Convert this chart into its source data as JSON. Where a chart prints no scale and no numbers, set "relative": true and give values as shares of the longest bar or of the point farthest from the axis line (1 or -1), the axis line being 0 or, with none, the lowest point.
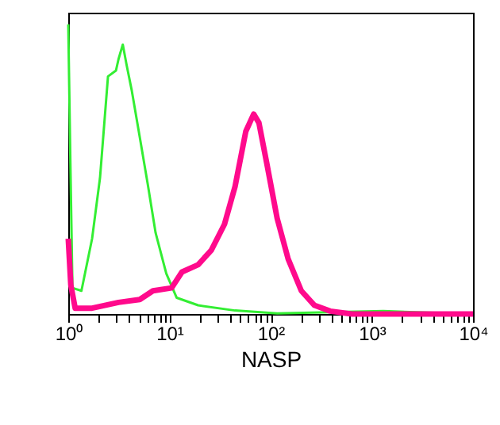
{
  "chart_data": {
    "type": "line",
    "xlabel": "NASP",
    "log": "x",
    "relative": true,
    "marker": "none",
    "xlim": [
      1,
      10000
    ],
    "xticks": [
      {
        "value": 1,
        "label": "10⁰"
      },
      {
        "value": 2,
        "label": null
      },
      {
        "value": 3,
        "label": null
      },
      {
        "value": 4,
        "label": null
      },
      {
        "value": 5,
        "label": null
      },
      {
        "value": 6,
        "label": null
      },
      {
        "value": 7,
        "label": null
      },
      {
        "value": 8,
        "label": null
      },
      {
        "value": 9,
        "label": null
      },
      {
        "value": 10,
        "label": "10¹"
      },
      {
        "value": 20,
        "label": null
      },
      {
        "value": 30,
        "label": null
      },
      {
        "value": 40,
        "label": null
      },
      {
        "value": 50,
        "label": null
      },
      {
        "value": 60,
        "label": null
      },
      {
        "value": 70,
        "label": null
      },
      {
        "value": 80,
        "label": null
      },
      {
        "value": 90,
        "label": null
      },
      {
        "value": 100,
        "label": "10²"
      },
      {
        "value": 200,
        "label": null
      },
      {
        "value": 300,
        "label": null
      },
      {
        "value": 400,
        "label": null
      },
      {
        "value": 500,
        "label": null
      },
      {
        "value": 600,
        "label": null
      },
      {
        "value": 700,
        "label": null
      },
      {
        "value": 800,
        "label": null
      },
      {
        "value": 900,
        "label": null
      },
      {
        "value": 1000,
        "label": "10³"
      },
      {
        "value": 2000,
        "label": null
      },
      {
        "value": 3000,
        "label": null
      },
      {
        "value": 4000,
        "label": null
      },
      {
        "value": 5000,
        "label": null
      },
      {
        "value": 6000,
        "label": null
      },
      {
        "value": 7000,
        "label": null
      },
      {
        "value": 8000,
        "label": null
      },
      {
        "value": 9000,
        "label": null
      },
      {
        "value": 10000,
        "label": "10⁴"
      }
    ],
    "series": [
      {
        "color": "#33ee33",
        "x": [
          1,
          1.05,
          1.1,
          1.35,
          1.72,
          2.06,
          2.47,
          2.96,
          3.14,
          3.46,
          3.77,
          4.25,
          5.09,
          6.09,
          7.3,
          9.3,
          11.8,
          19.2,
          44.5,
          116,
          1300,
          10000
        ],
        "values": [
          1,
          0.52,
          0.09,
          0.08,
          0.26,
          0.47,
          0.82,
          0.84,
          0.88,
          0.93,
          0.86,
          0.77,
          0.61,
          0.45,
          0.28,
          0.14,
          0.056,
          0.03,
          0.012,
          0.002,
          0.01,
          0
        ]
      },
      {
        "color": "#ff0a8c",
        "x": [
          1,
          1.06,
          1.17,
          1.72,
          3.14,
          5.09,
          6.87,
          10.5,
          13.3,
          19.2,
          25.9,
          35,
          44.5,
          56.8,
          68,
          76.6,
          91.6,
          116,
          149,
          201,
          271,
          388,
          632,
          10000
        ],
        "values": [
          0.26,
          0.1,
          0.02,
          0.02,
          0.04,
          0.05,
          0.08,
          0.09,
          0.145,
          0.17,
          0.22,
          0.31,
          0.44,
          0.63,
          0.69,
          0.66,
          0.52,
          0.33,
          0.19,
          0.08,
          0.03,
          0.01,
          0,
          0
        ]
      }
    ]
  }
}
